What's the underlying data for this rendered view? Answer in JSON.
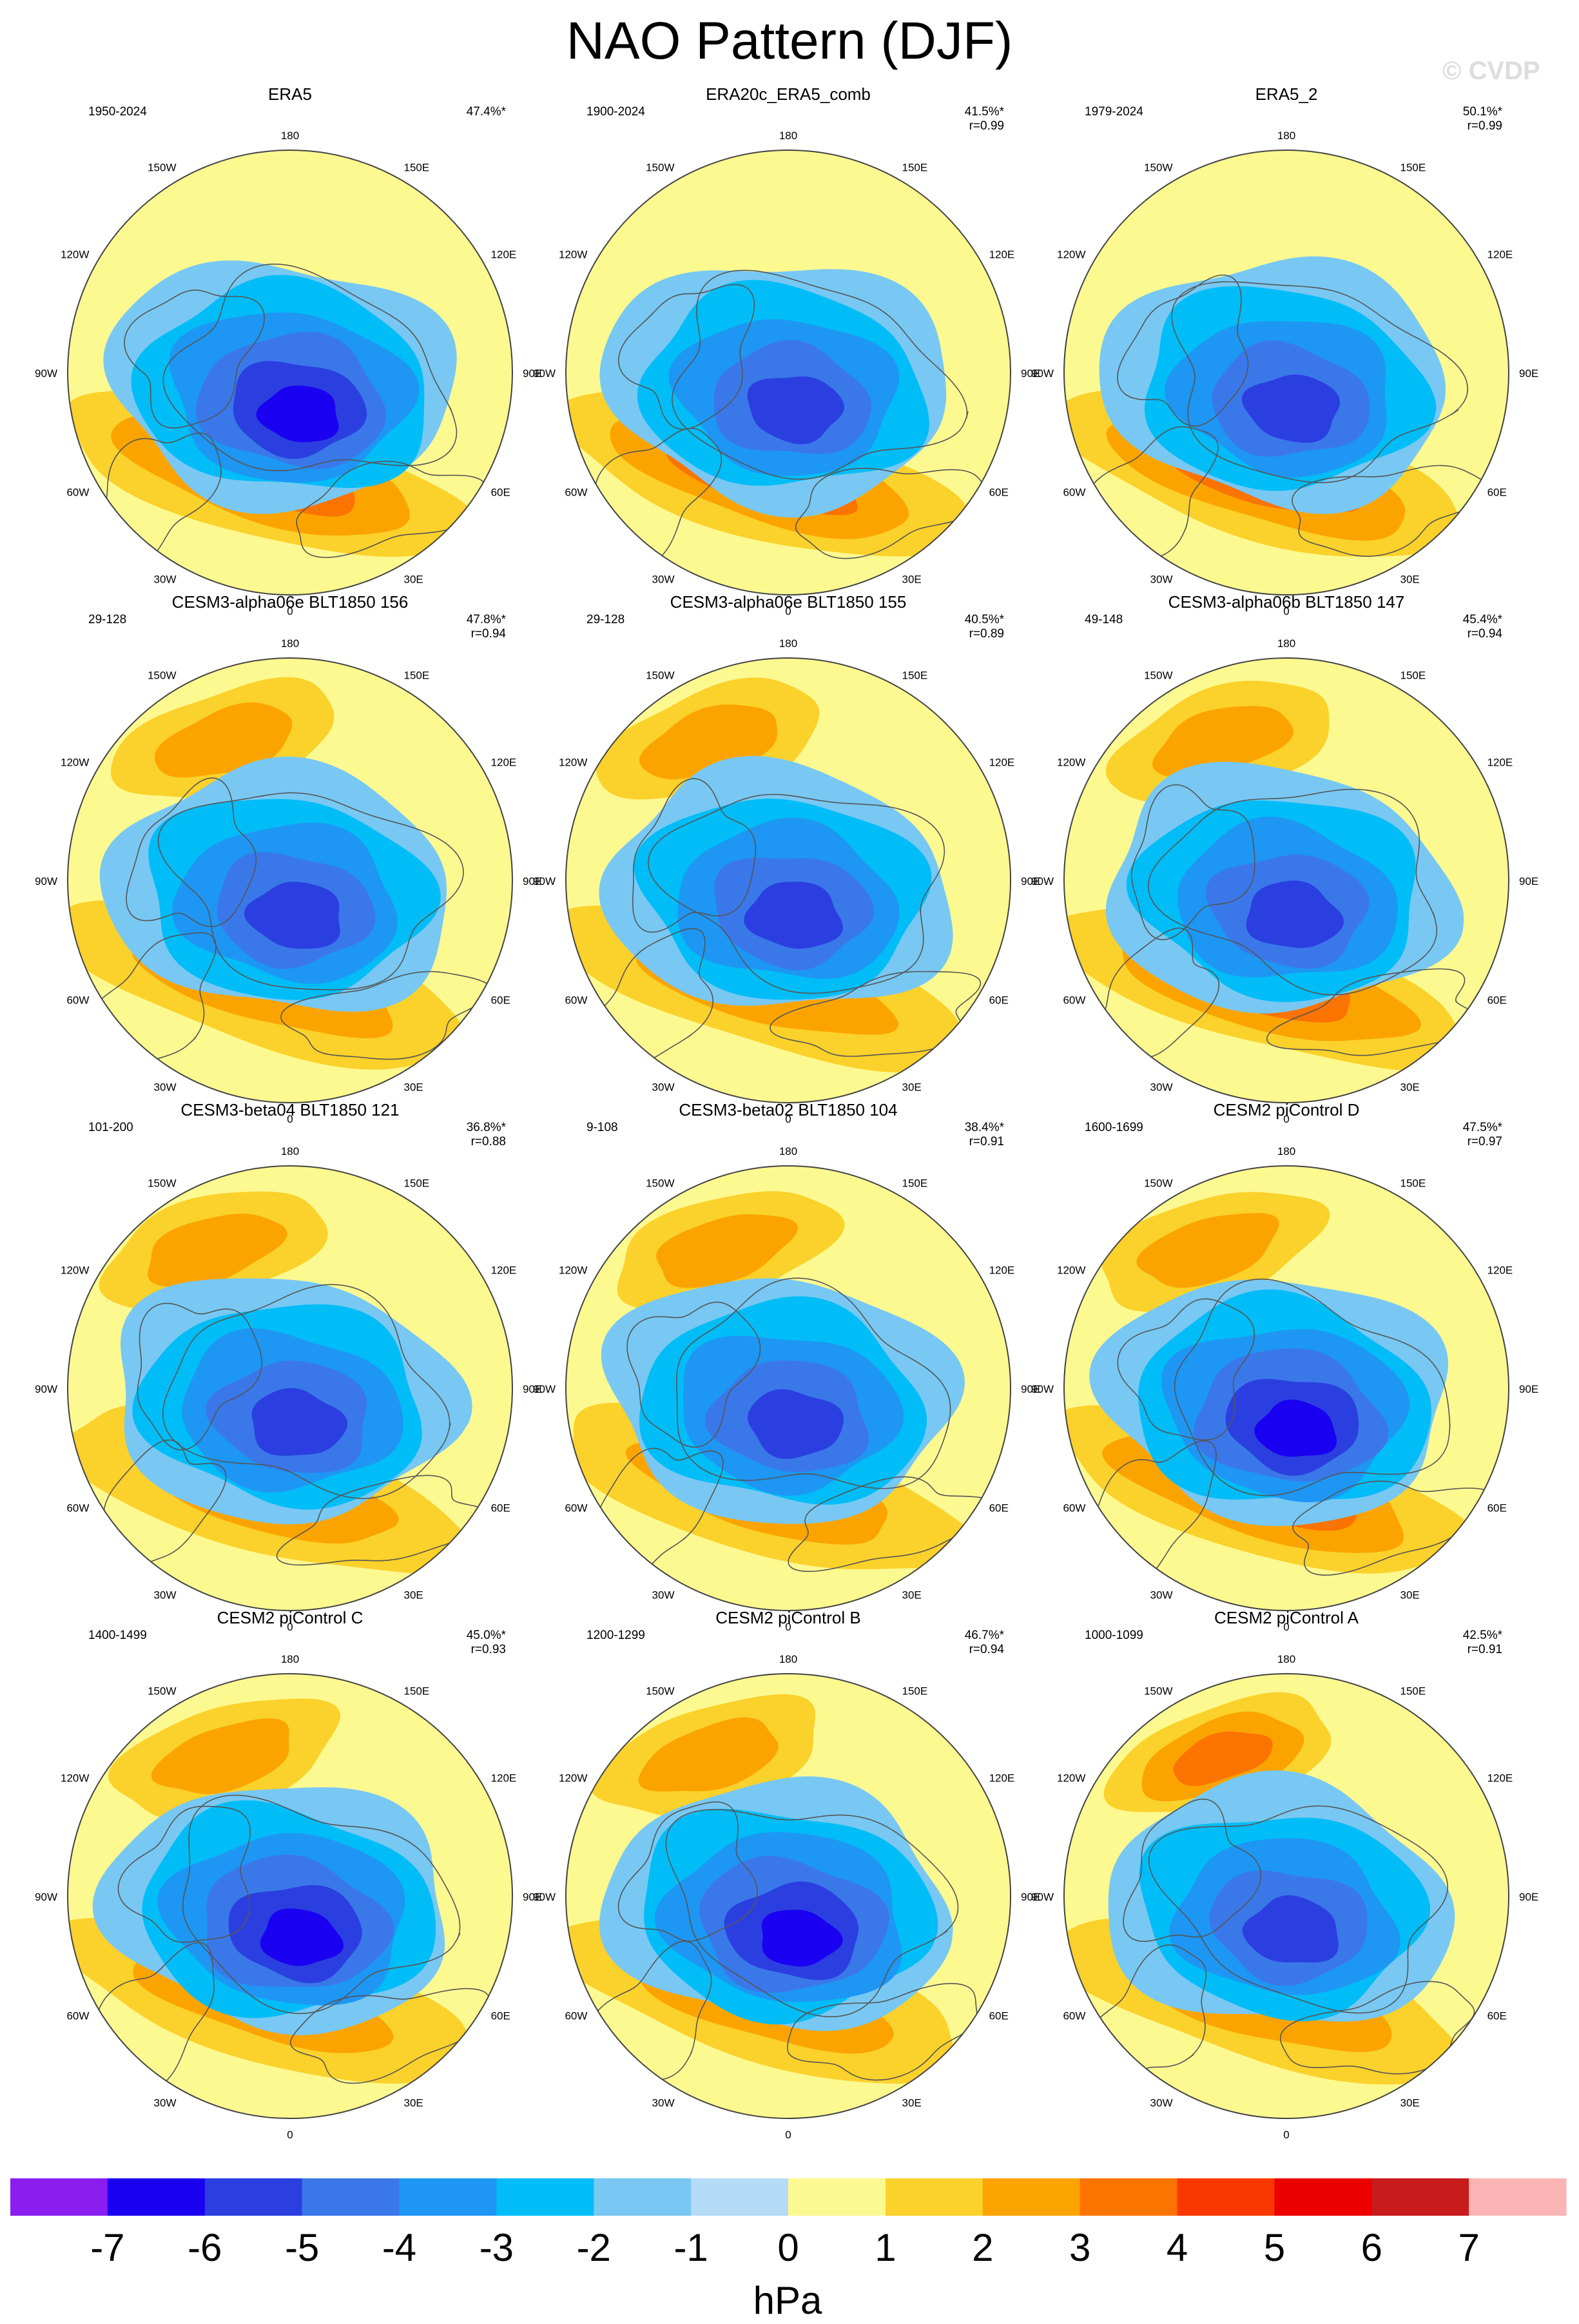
{
  "title": "NAO Pattern (DJF)",
  "watermark": "© CVDP",
  "colors": {
    "levels": [
      "#8a1ef0",
      "#1a00f0",
      "#2b3fe0",
      "#3a78ea",
      "#1e96f4",
      "#00bdf7",
      "#78c8f3",
      "#b4dcf7",
      "#fdf991",
      "#fbd12b",
      "#fba400",
      "#fb7300",
      "#fb3700",
      "#ec0000",
      "#c81b1b",
      "#fbb4b4"
    ],
    "coast": "#555555",
    "rim": "#444444"
  },
  "chart_data": [
    {
      "type": "heatmap",
      "title": "ERA5",
      "period": "1950-2024",
      "pct": "47.4%*",
      "r": "",
      "pattern": {
        "low": -6,
        "high": 3,
        "pac": 0,
        "lowAngle": 0,
        "highAngle": 0
      }
    },
    {
      "type": "heatmap",
      "title": "ERA20c_ERA5_comb",
      "period": "1900-2024",
      "pct": "41.5%*",
      "r": "r=0.99",
      "pattern": {
        "low": -5,
        "high": 3,
        "pac": 0,
        "lowAngle": 0,
        "highAngle": 0
      }
    },
    {
      "type": "heatmap",
      "title": "ERA5_2",
      "period": "1979-2024",
      "pct": "50.1%*",
      "r": "r=0.99",
      "pattern": {
        "low": -5,
        "high": 3,
        "pac": 0,
        "lowAngle": 0,
        "highAngle": 0
      }
    },
    {
      "type": "heatmap",
      "title": "CESM3-alpha06e BLT1850 156",
      "period": "29-128",
      "pct": "47.8%*",
      "r": "r=0.94",
      "pattern": {
        "low": -5,
        "high": 2,
        "pac": 2,
        "lowAngle": 0,
        "highAngle": 0
      }
    },
    {
      "type": "heatmap",
      "title": "CESM3-alpha06e BLT1850 155",
      "period": "29-128",
      "pct": "40.5%*",
      "r": "r=0.89",
      "pattern": {
        "low": -5,
        "high": 2,
        "pac": 2,
        "lowAngle": 0,
        "highAngle": 0
      }
    },
    {
      "type": "heatmap",
      "title": "CESM3-alpha06b BLT1850 147",
      "period": "49-148",
      "pct": "45.4%*",
      "r": "r=0.94",
      "pattern": {
        "low": -5,
        "high": 3,
        "pac": 2,
        "lowAngle": 0,
        "highAngle": 0
      }
    },
    {
      "type": "heatmap",
      "title": "CESM3-beta04 BLT1850 121",
      "period": "101-200",
      "pct": "36.8%*",
      "r": "r=0.88",
      "pattern": {
        "low": -5,
        "high": 2,
        "pac": 2,
        "lowAngle": 0,
        "highAngle": 0
      }
    },
    {
      "type": "heatmap",
      "title": "CESM3-beta02 BLT1850 104",
      "period": "9-108",
      "pct": "38.4%*",
      "r": "r=0.91",
      "pattern": {
        "low": -5,
        "high": 2,
        "pac": 2,
        "lowAngle": 0,
        "highAngle": 0
      }
    },
    {
      "type": "heatmap",
      "title": "CESM2 piControl D",
      "period": "1600-1699",
      "pct": "47.5%*",
      "r": "r=0.97",
      "pattern": {
        "low": -6,
        "high": 3,
        "pac": 2,
        "lowAngle": 0,
        "highAngle": 0
      }
    },
    {
      "type": "heatmap",
      "title": "CESM2 piControl C",
      "period": "1400-1499",
      "pct": "45.0%*",
      "r": "r=0.93",
      "pattern": {
        "low": -6,
        "high": 2,
        "pac": 2,
        "lowAngle": 0,
        "highAngle": 0
      }
    },
    {
      "type": "heatmap",
      "title": "CESM2 piControl B",
      "period": "1200-1299",
      "pct": "46.7%*",
      "r": "r=0.94",
      "pattern": {
        "low": -6,
        "high": 2,
        "pac": 2,
        "lowAngle": 0,
        "highAngle": 0
      }
    },
    {
      "type": "heatmap",
      "title": "CESM2 piControl A",
      "period": "1000-1099",
      "pct": "42.5%*",
      "r": "r=0.91",
      "pattern": {
        "low": -5,
        "high": 2,
        "pac": 3,
        "lowAngle": 0,
        "highAngle": 0
      }
    }
  ],
  "lon_labels": [
    "180",
    "150E",
    "120E",
    "90E",
    "60E",
    "30E",
    "0",
    "30W",
    "60W",
    "90W",
    "120W",
    "150W"
  ],
  "colorbar": {
    "ticks": [
      "-7",
      "-6",
      "-5",
      "-4",
      "-3",
      "-2",
      "-1",
      "0",
      "1",
      "2",
      "3",
      "4",
      "5",
      "6",
      "7"
    ],
    "unit": "hPa"
  }
}
